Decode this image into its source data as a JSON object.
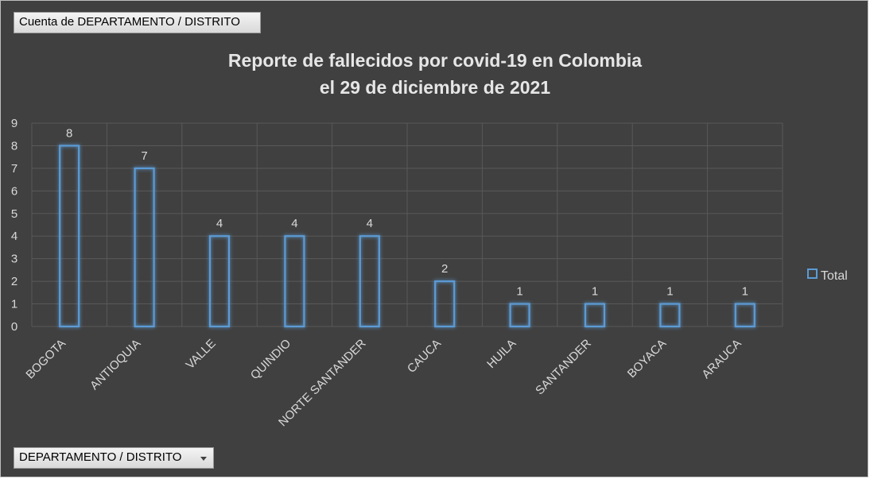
{
  "value_field_label": "Cuenta de DEPARTAMENTO / DISTRITO",
  "axis_field_label": "DEPARTAMENTO / DISTRITO",
  "colors": {
    "bar": "#5b9bd5",
    "background": "#404040",
    "grid": "#595959",
    "text": "#d9d9d9"
  },
  "chart_data": {
    "type": "bar",
    "title": [
      "Reporte de fallecidos por covid-19 en Colombia",
      "el 29 de diciembre de 2021"
    ],
    "categories": [
      "BOGOTA",
      "ANTIOQUIA",
      "VALLE",
      "QUINDIO",
      "NORTE SANTANDER",
      "CAUCA",
      "HUILA",
      "SANTANDER",
      "BOYACA",
      "ARAUCA"
    ],
    "series": [
      {
        "name": "Total",
        "values": [
          8,
          7,
          4,
          4,
          4,
          2,
          1,
          1,
          1,
          1
        ]
      }
    ],
    "ylim": [
      0,
      9
    ],
    "yticks": [
      0,
      1,
      2,
      3,
      4,
      5,
      6,
      7,
      8,
      9
    ],
    "grid": true,
    "data_labels": true,
    "legend": "right"
  }
}
